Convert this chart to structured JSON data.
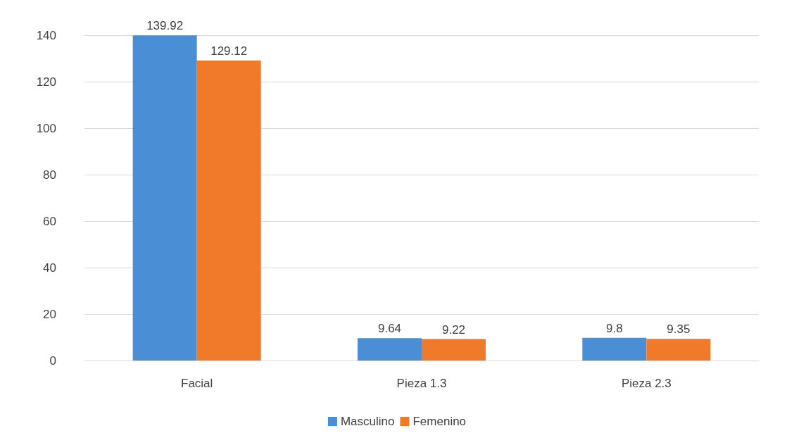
{
  "chart_data": {
    "type": "bar",
    "categories": [
      "Facial",
      "Pieza 1.3",
      "Pieza 2.3"
    ],
    "series": [
      {
        "name": "Masculino",
        "color": "#4a8fd6",
        "values": [
          139.92,
          9.64,
          9.8
        ]
      },
      {
        "name": "Femenino",
        "color": "#f07a2a",
        "values": [
          129.12,
          9.22,
          9.35
        ]
      }
    ],
    "ylim": [
      0,
      140
    ],
    "yticks": [
      0,
      20,
      40,
      60,
      80,
      100,
      120,
      140
    ],
    "grid": "y",
    "legend": "bottom",
    "data_labels": true
  }
}
